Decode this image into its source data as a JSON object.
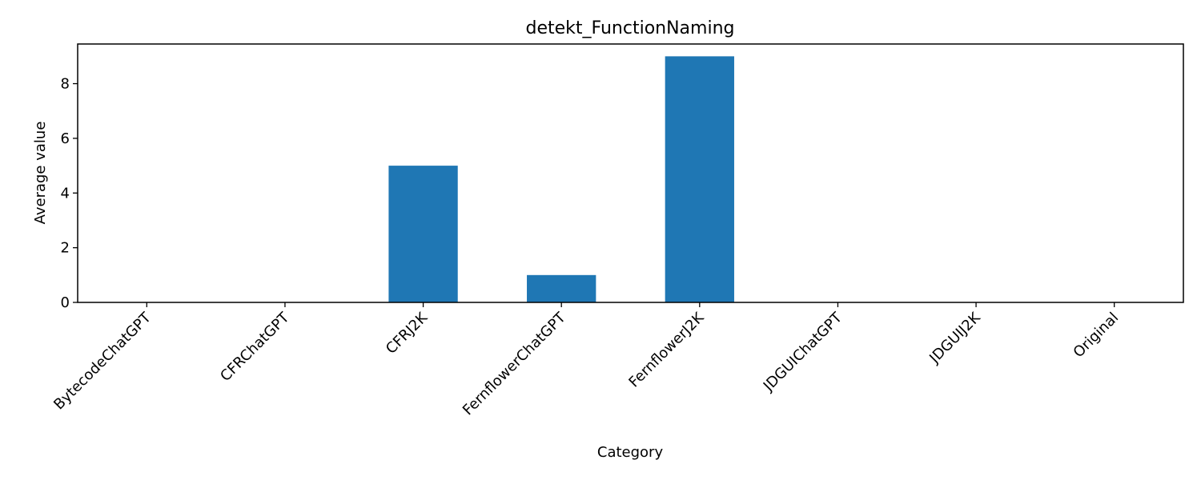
{
  "chart_data": {
    "type": "bar",
    "title": "detekt_FunctionNaming",
    "xlabel": "Category",
    "ylabel": "Average value",
    "categories": [
      "BytecodeChatGPT",
      "CFRChatGPT",
      "CFRJ2K",
      "FernflowerChatGPT",
      "FernflowerJ2K",
      "JDGUIChatGPT",
      "JDGUIJ2K",
      "Original"
    ],
    "values": [
      0,
      0,
      5,
      1,
      9,
      0,
      0,
      0
    ],
    "ylim": [
      0,
      9.45
    ],
    "yticks": [
      0,
      2,
      4,
      6,
      8
    ],
    "bar_color": "#1f77b4",
    "grid": false,
    "legend": false
  }
}
